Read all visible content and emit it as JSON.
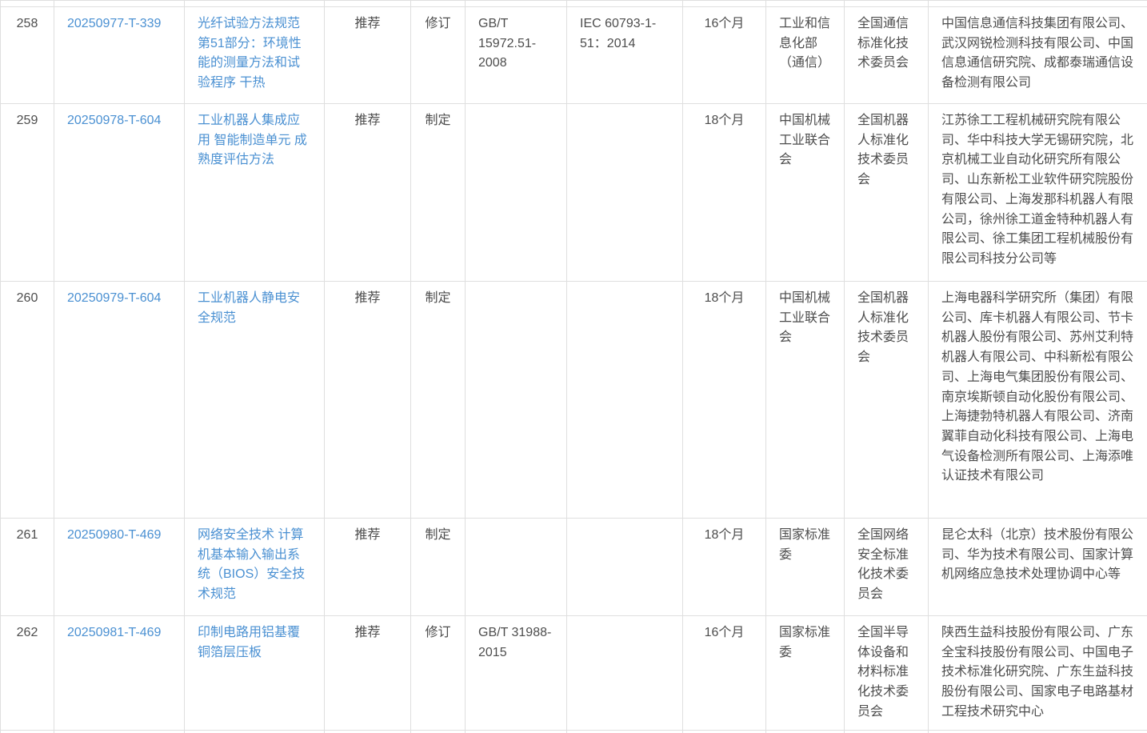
{
  "colors": {
    "link_blue": "#4a90d2",
    "body_text": "#4d4d4d",
    "border_gray": "#dfdfdf",
    "background": "#ffffff"
  },
  "rows": [
    {
      "seq": "258",
      "plan_no": "20250977-T-339",
      "name": "光纤试验方法规范 第51部分：环境性能的测量方法和试验程序 干热",
      "property": "推荐",
      "type": "修订",
      "revised_std": "GB/T 15972.51-2008",
      "intl_std": "IEC 60793-1-51：2014",
      "duration": "16个月",
      "dept": "工业和信息化部（通信）",
      "tc": "全国通信标准化技术委员会",
      "drafters": "中国信息通信科技集团有限公司、武汉网锐检测科技有限公司、中国信息通信研究院、成都泰瑞通信设备检测有限公司"
    },
    {
      "seq": "259",
      "plan_no": "20250978-T-604",
      "name": "工业机器人集成应用 智能制造单元 成熟度评估方法",
      "property": "推荐",
      "type": "制定",
      "revised_std": "",
      "intl_std": "",
      "duration": "18个月",
      "dept": "中国机械工业联合会",
      "tc": "全国机器人标准化技术委员会",
      "drafters": "江苏徐工工程机械研究院有限公司、华中科技大学无锡研究院，北京机械工业自动化研究所有限公司、山东新松工业软件研究院股份有限公司、上海发那科机器人有限公司，徐州徐工道金特种机器人有限公司、徐工集团工程机械股份有限公司科技分公司等"
    },
    {
      "seq": "260",
      "plan_no": "20250979-T-604",
      "name": "工业机器人静电安全规范",
      "property": "推荐",
      "type": "制定",
      "revised_std": "",
      "intl_std": "",
      "duration": "18个月",
      "dept": "中国机械工业联合会",
      "tc": "全国机器人标准化技术委员会",
      "drafters": "上海电器科学研究所（集团）有限公司、库卡机器人有限公司、节卡机器人股份有限公司、苏州艾利特机器人有限公司、中科新松有限公司、上海电气集团股份有限公司、南京埃斯顿自动化股份有限公司、上海捷勃特机器人有限公司、济南翼菲自动化科技有限公司、上海电气设备检测所有限公司、上海添唯认证技术有限公司"
    },
    {
      "seq": "261",
      "plan_no": "20250980-T-469",
      "name": "网络安全技术 计算机基本输入输出系统（BIOS）安全技术规范",
      "property": "推荐",
      "type": "制定",
      "revised_std": "",
      "intl_std": "",
      "duration": "18个月",
      "dept": "国家标准委",
      "tc": "全国网络安全标准化技术委员会",
      "drafters": "昆仑太科（北京）技术股份有限公司、华为技术有限公司、国家计算机网络应急技术处理协调中心等"
    },
    {
      "seq": "262",
      "plan_no": "20250981-T-469",
      "name": "印制电路用铝基覆铜箔层压板",
      "property": "推荐",
      "type": "修订",
      "revised_std": "GB/T 31988-2015",
      "intl_std": "",
      "duration": "16个月",
      "dept": "国家标准委",
      "tc": "全国半导体设备和材料标准化技术委员会",
      "drafters": "陕西生益科技股份有限公司、广东全宝科技股份有限公司、中国电子技术标准化研究院、广东生益科技股份有限公司、国家电子电路基材工程技术研究中心"
    }
  ]
}
